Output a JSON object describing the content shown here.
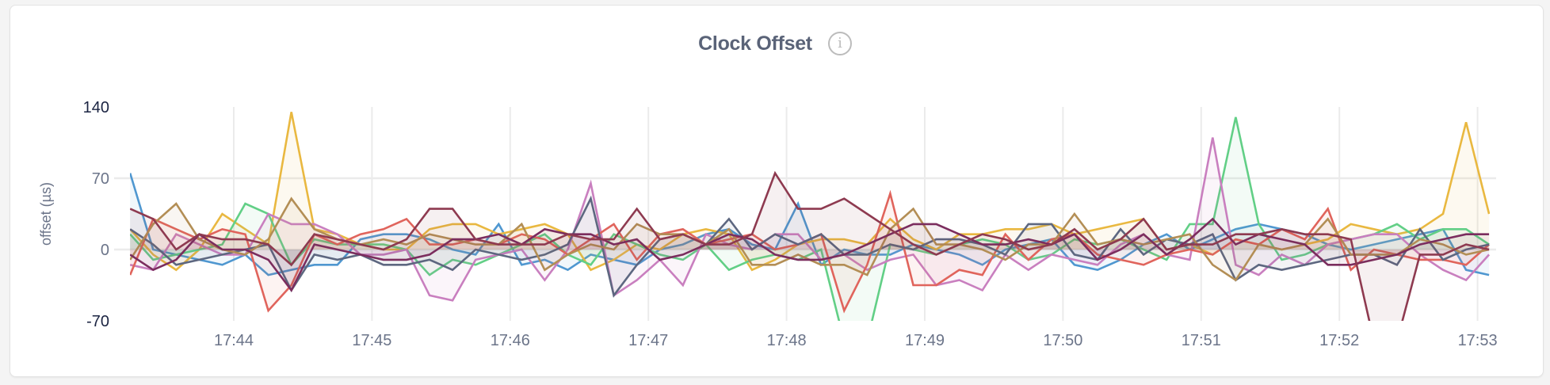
{
  "chart_data": {
    "type": "line",
    "title": "Clock Offset",
    "info_icon": "info-icon",
    "ylabel": "offset (µs)",
    "ylim": [
      -70,
      140
    ],
    "yticks": [
      {
        "value": 140,
        "label": "140"
      },
      {
        "value": 70,
        "label": "70"
      },
      {
        "value": 0,
        "label": "0"
      },
      {
        "value": -70,
        "label": "-70"
      }
    ],
    "xticks": [
      "17:44",
      "17:45",
      "17:46",
      "17:47",
      "17:48",
      "17:49",
      "17:50",
      "17:51",
      "17:52",
      "17:53"
    ],
    "x_start": "17:43:15",
    "x_step_seconds": 10,
    "area_fill": true,
    "grid": true,
    "series": [
      {
        "color": "#4f97d0",
        "values": [
          75,
          0,
          -5,
          -10,
          -15,
          -5,
          -25,
          -20,
          -15,
          -15,
          10,
          15,
          15,
          10,
          0,
          -5,
          25,
          -15,
          -10,
          -20,
          -5,
          -10,
          -15,
          0,
          5,
          15,
          20,
          5,
          0,
          45,
          -15,
          0,
          -5,
          -5,
          5,
          0,
          -5,
          -15,
          0,
          5,
          10,
          -15,
          -20,
          -10,
          5,
          15,
          0,
          10,
          20,
          25,
          20,
          15,
          5,
          0,
          5,
          10,
          15,
          20,
          -20,
          -25
        ]
      },
      {
        "color": "#e9b840",
        "values": [
          20,
          -5,
          -20,
          0,
          35,
          20,
          5,
          135,
          20,
          15,
          5,
          0,
          0,
          20,
          25,
          25,
          15,
          20,
          25,
          15,
          -20,
          -10,
          5,
          0,
          15,
          20,
          15,
          -20,
          -10,
          5,
          10,
          10,
          5,
          30,
          10,
          0,
          15,
          15,
          20,
          20,
          25,
          15,
          20,
          25,
          30,
          0,
          5,
          -5,
          10,
          5,
          0,
          5,
          10,
          25,
          20,
          15,
          20,
          35,
          125,
          35
        ]
      },
      {
        "color": "#62cf86",
        "values": [
          15,
          -10,
          -5,
          0,
          5,
          45,
          35,
          -15,
          10,
          5,
          5,
          5,
          0,
          -25,
          -10,
          -15,
          -5,
          5,
          15,
          -5,
          -15,
          15,
          5,
          -5,
          -10,
          5,
          -20,
          -10,
          -5,
          -10,
          0,
          -90,
          -90,
          5,
          0,
          -5,
          5,
          10,
          5,
          -10,
          -5,
          10,
          5,
          10,
          0,
          -10,
          25,
          25,
          130,
          25,
          -10,
          -5,
          5,
          10,
          15,
          25,
          10,
          20,
          20,
          5
        ]
      },
      {
        "color": "#c97fbf",
        "values": [
          -15,
          -20,
          15,
          5,
          -5,
          -5,
          35,
          25,
          25,
          15,
          -5,
          -5,
          0,
          -45,
          -50,
          -10,
          -5,
          0,
          -30,
          0,
          65,
          -45,
          -30,
          -10,
          -35,
          15,
          5,
          0,
          15,
          15,
          -10,
          -5,
          -20,
          -10,
          -5,
          -35,
          -30,
          -40,
          -5,
          -20,
          -5,
          -10,
          -15,
          5,
          15,
          -5,
          -10,
          110,
          -15,
          -25,
          -5,
          -15,
          5,
          10,
          15,
          15,
          -5,
          -20,
          -30,
          -5
        ]
      },
      {
        "color": "#e0645c",
        "values": [
          -25,
          30,
          20,
          10,
          20,
          15,
          -60,
          -35,
          15,
          5,
          15,
          20,
          30,
          5,
          5,
          10,
          5,
          15,
          10,
          -5,
          10,
          25,
          -10,
          15,
          20,
          5,
          10,
          15,
          0,
          5,
          15,
          -60,
          -15,
          55,
          -35,
          -35,
          -20,
          -25,
          15,
          -10,
          10,
          15,
          -5,
          -10,
          -15,
          -5,
          0,
          -5,
          10,
          5,
          20,
          10,
          40,
          -20,
          0,
          -5,
          -10,
          -10,
          -15,
          5
        ]
      },
      {
        "color": "#5d6780",
        "values": [
          20,
          5,
          -15,
          -10,
          -5,
          0,
          5,
          -40,
          -5,
          -10,
          -5,
          -15,
          -15,
          -10,
          -20,
          0,
          -5,
          -10,
          -5,
          5,
          50,
          -45,
          -15,
          10,
          15,
          5,
          30,
          0,
          15,
          5,
          15,
          -5,
          -5,
          5,
          0,
          10,
          10,
          5,
          -5,
          25,
          25,
          -5,
          -10,
          20,
          -5,
          10,
          5,
          15,
          -30,
          -15,
          -20,
          -15,
          -10,
          -5,
          -5,
          -15,
          20,
          -10,
          0,
          5
        ]
      },
      {
        "color": "#b38e55",
        "values": [
          -10,
          25,
          45,
          10,
          0,
          -5,
          10,
          50,
          20,
          10,
          5,
          10,
          5,
          15,
          10,
          5,
          5,
          25,
          -20,
          -5,
          5,
          0,
          25,
          15,
          15,
          5,
          20,
          -15,
          -15,
          -5,
          -15,
          -15,
          -25,
          20,
          40,
          5,
          5,
          0,
          -10,
          5,
          5,
          35,
          5,
          10,
          5,
          10,
          15,
          -15,
          -30,
          5,
          0,
          5,
          30,
          -5,
          -5,
          -5,
          10,
          5,
          -5,
          0
        ]
      },
      {
        "color": "#7b2d5e",
        "values": [
          -5,
          -20,
          -10,
          15,
          0,
          0,
          -10,
          -40,
          5,
          0,
          -5,
          -10,
          -10,
          -5,
          10,
          10,
          15,
          5,
          20,
          15,
          15,
          5,
          10,
          -10,
          -5,
          5,
          15,
          10,
          -5,
          -10,
          -10,
          -5,
          5,
          15,
          25,
          25,
          15,
          5,
          5,
          10,
          5,
          15,
          -10,
          0,
          15,
          -5,
          10,
          30,
          5,
          15,
          10,
          5,
          -15,
          -15,
          -10,
          -5,
          5,
          10,
          15,
          15
        ]
      },
      {
        "color": "#8e3a50",
        "values": [
          40,
          30,
          0,
          15,
          10,
          10,
          5,
          -15,
          15,
          10,
          5,
          0,
          10,
          40,
          40,
          10,
          5,
          5,
          5,
          15,
          10,
          10,
          40,
          10,
          15,
          5,
          5,
          15,
          75,
          40,
          40,
          50,
          35,
          20,
          5,
          -5,
          5,
          15,
          10,
          0,
          5,
          20,
          0,
          10,
          30,
          0,
          5,
          5,
          15,
          15,
          20,
          15,
          15,
          10,
          -90,
          -90,
          -5,
          -5,
          5,
          0
        ]
      }
    ]
  }
}
